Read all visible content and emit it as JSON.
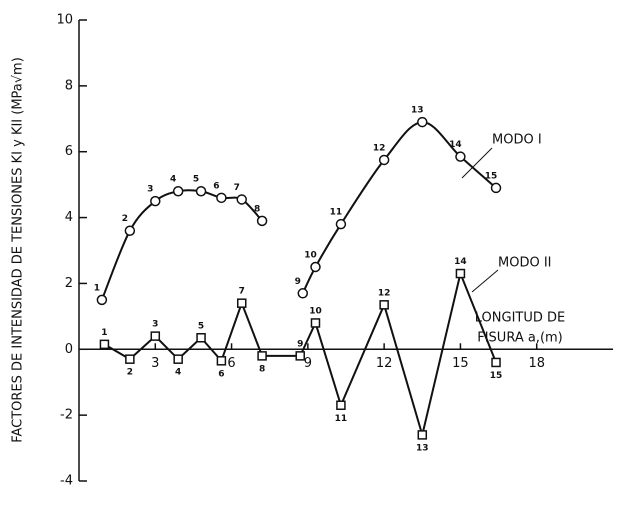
{
  "chart_data": {
    "type": "line",
    "y_label": "FACTORES DE INTENSIDAD DE TENSIONES KI y KII (MPa√m)",
    "x_label_lines": [
      "LONGITUD DE",
      "FISURA a,(m)"
    ],
    "xlim": [
      0,
      21
    ],
    "xticks": [
      3,
      6,
      9,
      12,
      15,
      18
    ],
    "ylim": [
      -4,
      10
    ],
    "yticks": [
      -4,
      -2,
      0,
      2,
      4,
      6,
      8,
      10
    ],
    "series": [
      {
        "name": "MODO I",
        "marker": "circle",
        "color": "#111111",
        "x": [
          0.9,
          2.0,
          3.0,
          3.9,
          4.8,
          5.6,
          6.4,
          7.2,
          null,
          8.8,
          9.3,
          10.3,
          12.0,
          13.5,
          15.0,
          16.4
        ],
        "values": [
          1.5,
          3.6,
          4.5,
          4.8,
          4.8,
          4.6,
          4.55,
          3.9,
          null,
          1.7,
          2.5,
          3.8,
          5.75,
          6.9,
          5.85,
          4.9
        ],
        "point_labels": [
          "1",
          "2",
          "3",
          "4",
          "5",
          "6",
          "7",
          "8",
          null,
          "9",
          "10",
          "11",
          "12",
          "13",
          "14",
          "15"
        ]
      },
      {
        "name": "MODO II",
        "marker": "square",
        "color": "#111111",
        "x": [
          1.0,
          2.0,
          3.0,
          3.9,
          4.8,
          5.6,
          6.4,
          7.2,
          8.7,
          9.3,
          10.3,
          12.0,
          13.5,
          15.0,
          16.4
        ],
        "values": [
          0.15,
          -0.3,
          0.4,
          -0.3,
          0.35,
          -0.35,
          1.4,
          -0.2,
          -0.2,
          0.8,
          -1.7,
          1.35,
          -2.6,
          2.3,
          -0.4
        ],
        "point_labels": [
          "1",
          "2",
          "3",
          "4",
          "5",
          "6",
          "7",
          "8",
          "9",
          "10",
          "11",
          "12",
          "13",
          "14",
          "15"
        ]
      }
    ]
  }
}
